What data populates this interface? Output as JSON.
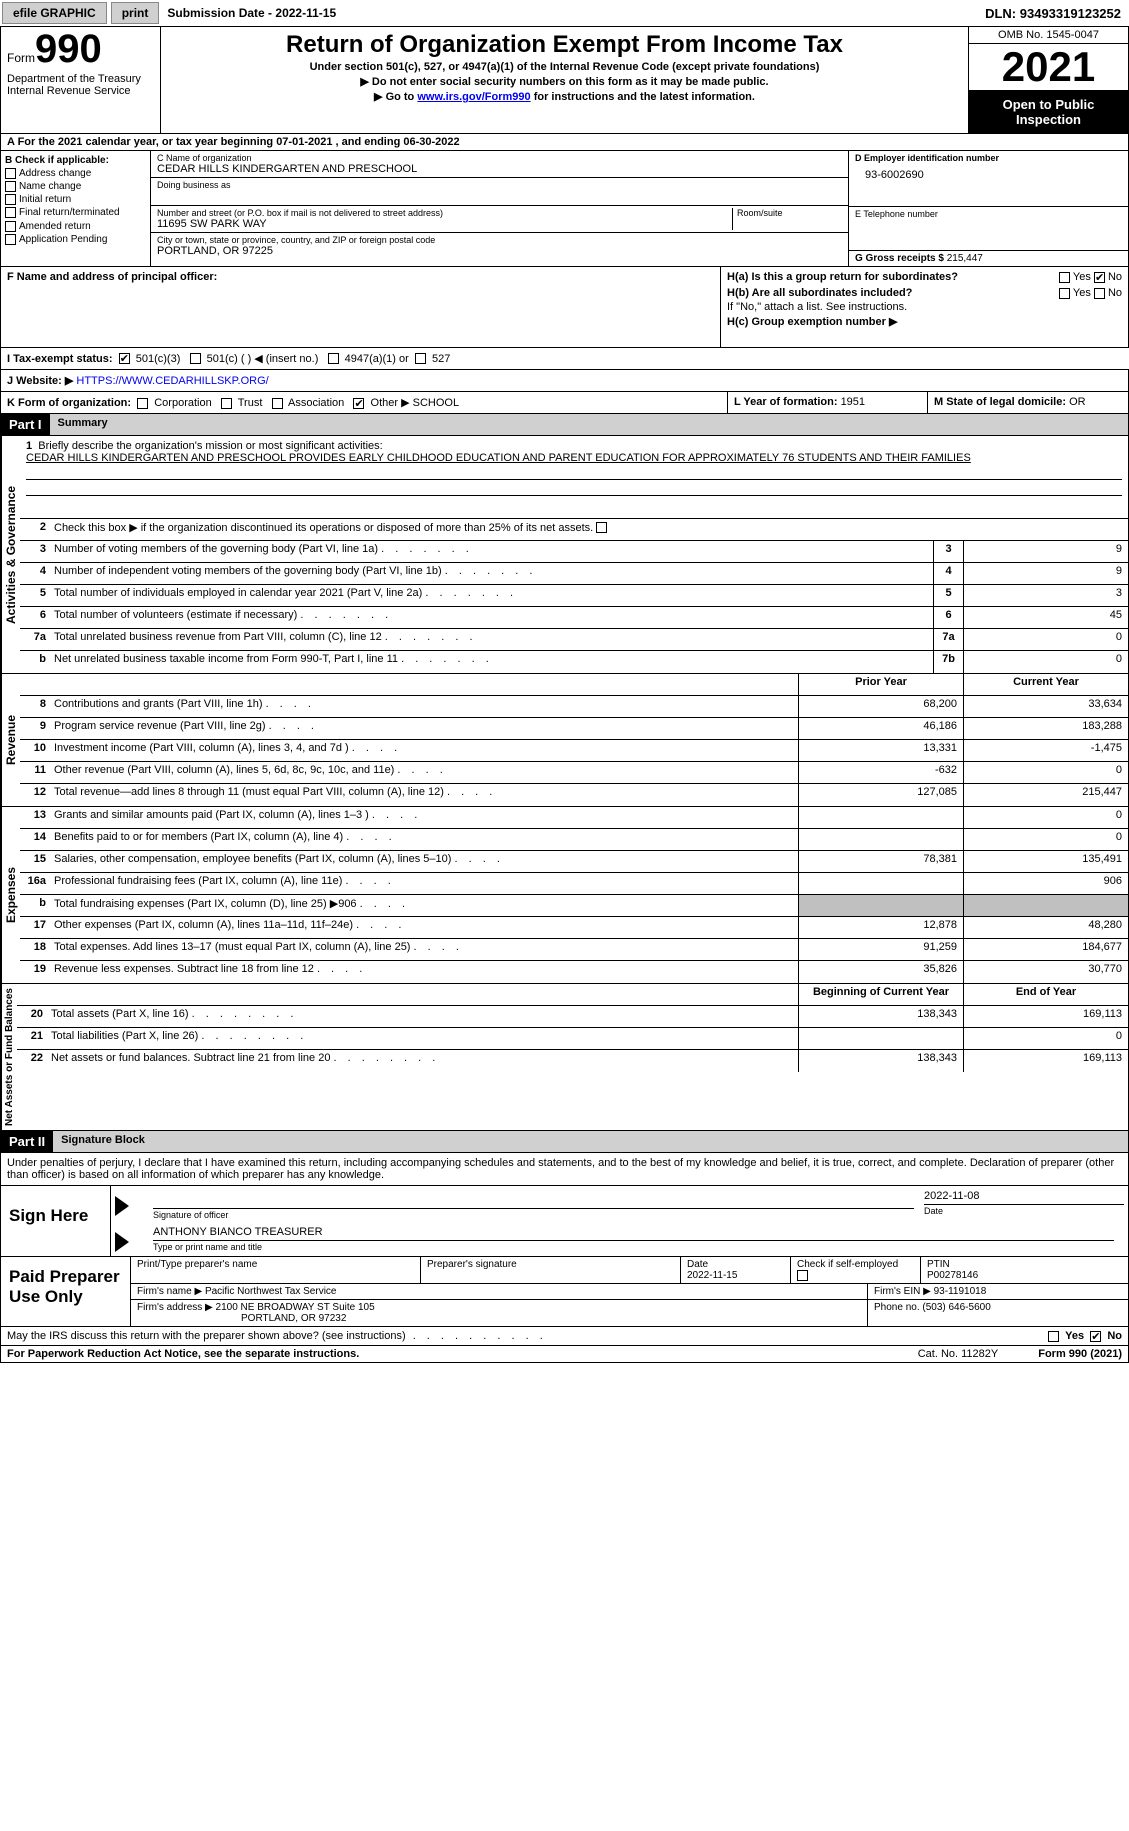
{
  "topbar": {
    "efile": "efile GRAPHIC",
    "print": "print",
    "subdate_label": "Submission Date - ",
    "subdate": "2022-11-15",
    "dln_label": "DLN: ",
    "dln": "93493319123252"
  },
  "header": {
    "form_word": "Form",
    "form_num": "990",
    "dept": "Department of the Treasury",
    "irs": "Internal Revenue Service",
    "title": "Return of Organization Exempt From Income Tax",
    "sub": "Under section 501(c), 527, or 4947(a)(1) of the Internal Revenue Code (except private foundations)",
    "arrow1": "▶ Do not enter social security numbers on this form as it may be made public.",
    "arrow2_pre": "▶ Go to ",
    "arrow2_link": "www.irs.gov/Form990",
    "arrow2_post": " for instructions and the latest information.",
    "omb": "OMB No. 1545-0047",
    "year": "2021",
    "open": "Open to Public Inspection"
  },
  "rowA": "A For the 2021 calendar year, or tax year beginning 07-01-2021    , and ending 06-30-2022",
  "colB": {
    "label": "B Check if applicable:",
    "items": [
      "Address change",
      "Name change",
      "Initial return",
      "Final return/terminated",
      "Amended return",
      "Application Pending"
    ]
  },
  "colC": {
    "name_lbl": "C Name of organization",
    "name": "CEDAR HILLS KINDERGARTEN AND PRESCHOOL",
    "dba_lbl": "Doing business as",
    "street_lbl": "Number and street (or P.O. box if mail is not delivered to street address)",
    "room_lbl": "Room/suite",
    "street": "11695 SW PARK WAY",
    "city_lbl": "City or town, state or province, country, and ZIP or foreign postal code",
    "city": "PORTLAND, OR  97225"
  },
  "colD": {
    "ein_lbl": "D Employer identification number",
    "ein": "93-6002690",
    "tel_lbl": "E Telephone number",
    "gross_lbl": "G Gross receipts $ ",
    "gross": "215,447"
  },
  "rowF": {
    "f_lbl": "F Name and address of principal officer:",
    "ha_lbl": "H(a)  Is this a group return for subordinates?",
    "hb_lbl": "H(b)  Are all subordinates included?",
    "hb_note": "If \"No,\" attach a list. See instructions.",
    "hc_lbl": "H(c)  Group exemption number ▶",
    "yes": "Yes",
    "no": "No"
  },
  "rowI": {
    "lbl": "I   Tax-exempt status:",
    "o501c3": "501(c)(3)",
    "o501c": "501(c) (  ) ◀ (insert no.)",
    "o4947": "4947(a)(1) or",
    "o527": "527"
  },
  "rowJ": {
    "lbl": "J   Website: ▶  ",
    "url": "HTTPS://WWW.CEDARHILLSKP.ORG/"
  },
  "rowK": {
    "k_lbl": "K Form of organization:",
    "corp": "Corporation",
    "trust": "Trust",
    "assoc": "Association",
    "other": "Other ▶",
    "other_val": "SCHOOL",
    "l_lbl": "L Year of formation: ",
    "l_val": "1951",
    "m_lbl": "M State of legal domicile: ",
    "m_val": "OR"
  },
  "part1": {
    "part": "Part I",
    "title": "Summary",
    "l1_lbl": "Briefly describe the organization's mission or most significant activities:",
    "l1_txt": "CEDAR HILLS KINDERGARTEN AND PRESCHOOL PROVIDES EARLY CHILDHOOD EDUCATION AND PARENT EDUCATION FOR APPROXIMATELY 76 STUDENTS AND THEIR FAMILIES",
    "l2": "Check this box ▶       if the organization discontinued its operations or disposed of more than 25% of its net assets.",
    "rows_ag": [
      {
        "n": "3",
        "t": "Number of voting members of the governing body (Part VI, line 1a)",
        "box": "3",
        "v": "9"
      },
      {
        "n": "4",
        "t": "Number of independent voting members of the governing body (Part VI, line 1b)",
        "box": "4",
        "v": "9"
      },
      {
        "n": "5",
        "t": "Total number of individuals employed in calendar year 2021 (Part V, line 2a)",
        "box": "5",
        "v": "3"
      },
      {
        "n": "6",
        "t": "Total number of volunteers (estimate if necessary)",
        "box": "6",
        "v": "45"
      },
      {
        "n": "7a",
        "t": "Total unrelated business revenue from Part VIII, column (C), line 12",
        "box": "7a",
        "v": "0"
      },
      {
        "n": "b",
        "t": "Net unrelated business taxable income from Form 990-T, Part I, line 11",
        "box": "7b",
        "v": "0"
      }
    ],
    "col_prior": "Prior Year",
    "col_curr": "Current Year",
    "rev": [
      {
        "n": "8",
        "t": "Contributions and grants (Part VIII, line 1h)",
        "p": "68,200",
        "c": "33,634"
      },
      {
        "n": "9",
        "t": "Program service revenue (Part VIII, line 2g)",
        "p": "46,186",
        "c": "183,288"
      },
      {
        "n": "10",
        "t": "Investment income (Part VIII, column (A), lines 3, 4, and 7d )",
        "p": "13,331",
        "c": "-1,475"
      },
      {
        "n": "11",
        "t": "Other revenue (Part VIII, column (A), lines 5, 6d, 8c, 9c, 10c, and 11e)",
        "p": "-632",
        "c": "0"
      },
      {
        "n": "12",
        "t": "Total revenue—add lines 8 through 11 (must equal Part VIII, column (A), line 12)",
        "p": "127,085",
        "c": "215,447"
      }
    ],
    "exp": [
      {
        "n": "13",
        "t": "Grants and similar amounts paid (Part IX, column (A), lines 1–3 )",
        "p": "",
        "c": "0"
      },
      {
        "n": "14",
        "t": "Benefits paid to or for members (Part IX, column (A), line 4)",
        "p": "",
        "c": "0"
      },
      {
        "n": "15",
        "t": "Salaries, other compensation, employee benefits (Part IX, column (A), lines 5–10)",
        "p": "78,381",
        "c": "135,491"
      },
      {
        "n": "16a",
        "t": "Professional fundraising fees (Part IX, column (A), line 11e)",
        "p": "",
        "c": "906"
      },
      {
        "n": "b",
        "t": "Total fundraising expenses (Part IX, column (D), line 25) ▶906",
        "p": "GREY",
        "c": "GREY"
      },
      {
        "n": "17",
        "t": "Other expenses (Part IX, column (A), lines 11a–11d, 11f–24e)",
        "p": "12,878",
        "c": "48,280"
      },
      {
        "n": "18",
        "t": "Total expenses. Add lines 13–17 (must equal Part IX, column (A), line 25)",
        "p": "91,259",
        "c": "184,677"
      },
      {
        "n": "19",
        "t": "Revenue less expenses. Subtract line 18 from line 12",
        "p": "35,826",
        "c": "30,770"
      }
    ],
    "col_beg": "Beginning of Current Year",
    "col_end": "End of Year",
    "net": [
      {
        "n": "20",
        "t": "Total assets (Part X, line 16)",
        "p": "138,343",
        "c": "169,113"
      },
      {
        "n": "21",
        "t": "Total liabilities (Part X, line 26)",
        "p": "",
        "c": "0"
      },
      {
        "n": "22",
        "t": "Net assets or fund balances. Subtract line 21 from line 20",
        "p": "138,343",
        "c": "169,113"
      }
    ]
  },
  "vtabs": {
    "ag": "Activities & Governance",
    "rev": "Revenue",
    "exp": "Expenses",
    "net": "Net Assets or Fund Balances"
  },
  "part2": {
    "part": "Part II",
    "title": "Signature Block",
    "penalty": "Under penalties of perjury, I declare that I have examined this return, including accompanying schedules and statements, and to the best of my knowledge and belief, it is true, correct, and complete. Declaration of preparer (other than officer) is based on all information of which preparer has any knowledge."
  },
  "sign": {
    "here": "Sign Here",
    "sig_lbl": "Signature of officer",
    "date_lbl": "Date",
    "date": "2022-11-08",
    "name": "ANTHONY BIANCO  TREASURER",
    "name_lbl": "Type or print name and title"
  },
  "prep": {
    "title": "Paid Preparer Use Only",
    "pname_lbl": "Print/Type preparer's name",
    "psig_lbl": "Preparer's signature",
    "pdate_lbl": "Date",
    "pdate": "2022-11-15",
    "pcheck_lbl": "Check         if self-employed",
    "ptin_lbl": "PTIN",
    "ptin": "P00278146",
    "firm_name_lbl": "Firm's name      ▶ ",
    "firm_name": "Pacific Northwest Tax Service",
    "firm_ein_lbl": "Firm's EIN ▶ ",
    "firm_ein": "93-1191018",
    "firm_addr_lbl": "Firm's address ▶ ",
    "firm_addr1": "2100 NE BROADWAY ST Suite 105",
    "firm_addr2": "PORTLAND, OR  97232",
    "phone_lbl": "Phone no. ",
    "phone": "(503) 646-5600"
  },
  "irs_discuss": {
    "q": "May the IRS discuss this return with the preparer shown above? (see instructions)",
    "yes": "Yes",
    "no": "No"
  },
  "footer": {
    "pra": "For Paperwork Reduction Act Notice, see the separate instructions.",
    "cat": "Cat. No. 11282Y",
    "form": "Form 990 (2021)"
  }
}
